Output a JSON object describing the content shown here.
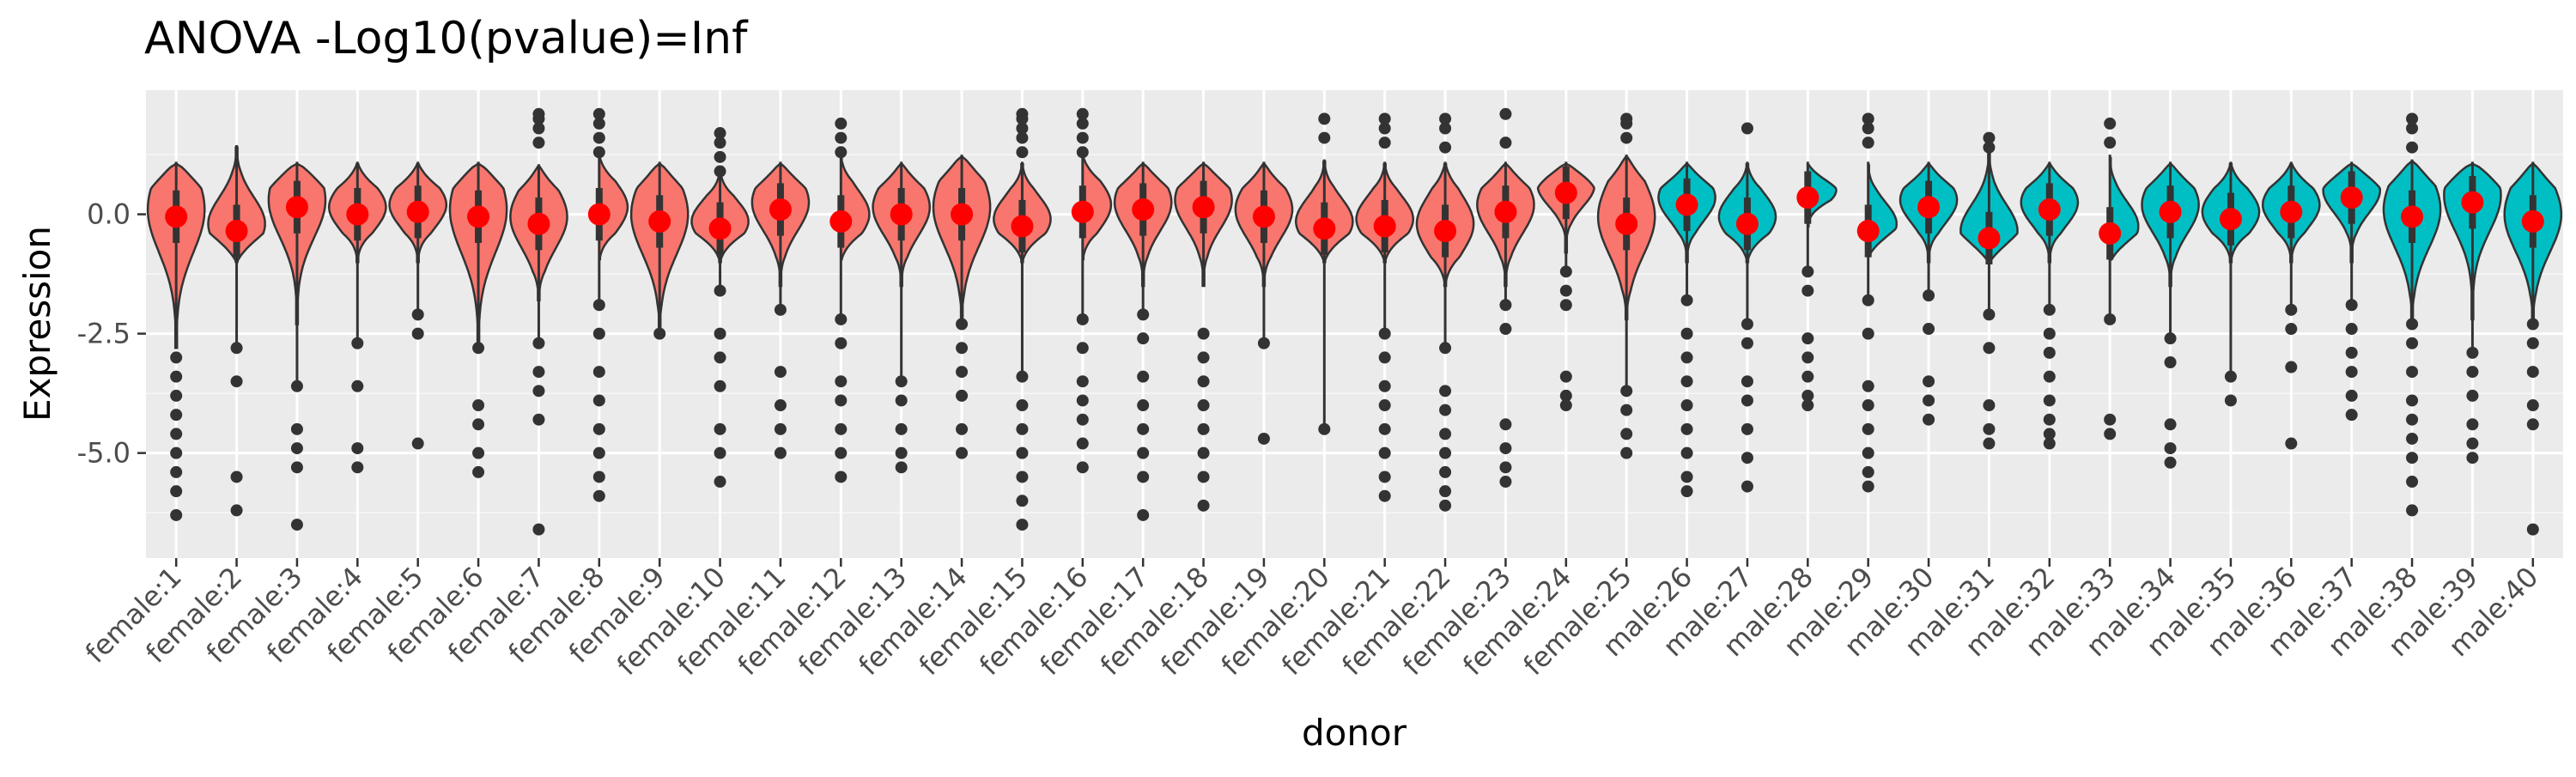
{
  "chart_data": {
    "type": "violin",
    "title": "ANOVA -Log10(pvalue)=Inf",
    "xlabel": "donor",
    "ylabel": "Expression",
    "ylim": [
      -7.2,
      2.6
    ],
    "yticks": [
      0.0,
      -2.5,
      -5.0
    ],
    "ytick_labels": [
      "0.0",
      "-2.5",
      "-5.0"
    ],
    "grid": true,
    "legend": "none",
    "group_colors": {
      "female": "#F8766D",
      "male": "#00BFC4"
    },
    "mean_color": "#FF0000",
    "outline_color": "#333333",
    "categories": [
      "female:1",
      "female:2",
      "female:3",
      "female:4",
      "female:5",
      "female:6",
      "female:7",
      "female:8",
      "female:9",
      "female:10",
      "female:11",
      "female:12",
      "female:13",
      "female:14",
      "female:15",
      "female:16",
      "female:17",
      "female:18",
      "female:19",
      "female:20",
      "female:21",
      "female:22",
      "female:23",
      "female:24",
      "female:25",
      "male:26",
      "male:27",
      "male:28",
      "male:29",
      "male:30",
      "male:31",
      "male:32",
      "male:33",
      "male:34",
      "male:35",
      "male:36",
      "male:37",
      "male:38",
      "male:39",
      "male:40"
    ],
    "groups": [
      "female",
      "female",
      "female",
      "female",
      "female",
      "female",
      "female",
      "female",
      "female",
      "female",
      "female",
      "female",
      "female",
      "female",
      "female",
      "female",
      "female",
      "female",
      "female",
      "female",
      "female",
      "female",
      "female",
      "female",
      "female",
      "male",
      "male",
      "male",
      "male",
      "male",
      "male",
      "male",
      "male",
      "male",
      "male",
      "male",
      "male",
      "male",
      "male",
      "male"
    ],
    "means": [
      -0.05,
      -0.35,
      0.15,
      0.0,
      0.05,
      -0.05,
      -0.2,
      -0.0,
      -0.15,
      -0.3,
      0.1,
      -0.15,
      0.0,
      0.0,
      -0.25,
      0.05,
      0.1,
      0.15,
      -0.05,
      -0.3,
      -0.25,
      -0.35,
      0.05,
      0.45,
      -0.2,
      0.2,
      -0.2,
      0.35,
      -0.35,
      0.15,
      -0.5,
      0.1,
      -0.4,
      0.05,
      -0.1,
      0.05,
      0.35,
      -0.05,
      0.25,
      -0.15
    ],
    "violin_max": [
      1.05,
      1.4,
      1.05,
      1.05,
      1.05,
      1.05,
      1.0,
      1.2,
      1.05,
      0.9,
      1.05,
      1.2,
      1.05,
      1.2,
      1.05,
      1.2,
      1.05,
      1.05,
      1.05,
      1.1,
      1.05,
      1.05,
      1.05,
      1.05,
      1.2,
      1.05,
      1.05,
      1.05,
      1.05,
      1.05,
      1.4,
      1.05,
      1.2,
      1.05,
      1.05,
      1.05,
      1.05,
      1.1,
      1.05,
      1.05
    ],
    "violin_min": [
      -2.8,
      -1.0,
      -2.3,
      -1.0,
      -1.0,
      -2.8,
      -1.8,
      -1.0,
      -2.5,
      -1.0,
      -1.5,
      -1.0,
      -1.5,
      -2.3,
      -1.0,
      -1.0,
      -1.5,
      -1.5,
      -1.5,
      -1.0,
      -1.0,
      -1.5,
      -1.5,
      -0.8,
      -2.2,
      -1.0,
      -1.0,
      -0.3,
      -0.9,
      -1.0,
      -1.0,
      -1.0,
      -1.0,
      -1.5,
      -1.0,
      -1.0,
      -1.0,
      -2.3,
      -2.2,
      -2.3
    ],
    "whisker_min": [
      -2.8,
      -2.8,
      -3.6,
      -2.7,
      -2.1,
      -2.8,
      -2.7,
      -1.9,
      -2.5,
      -1.6,
      -2.0,
      -2.2,
      -3.5,
      -2.3,
      -3.4,
      -2.2,
      -2.1,
      -1.5,
      -2.7,
      -4.5,
      -2.5,
      -2.8,
      -1.9,
      -1.2,
      -3.7,
      -1.8,
      -2.3,
      -1.2,
      -1.8,
      -1.7,
      -2.1,
      -2.0,
      -2.2,
      -2.6,
      -3.4,
      -2.0,
      -1.9,
      -2.3,
      -2.9,
      -2.3
    ],
    "outliers": [
      [
        -3,
        -3.4,
        -3.8,
        -4.2,
        -4.6,
        -5.0,
        -5.4,
        -5.8,
        -6.3
      ],
      [
        -2.8,
        -3.5,
        -5.5,
        -6.2
      ],
      [
        -3.6,
        -4.5,
        -4.9,
        -5.3,
        -6.5
      ],
      [
        -2.7,
        -3.6,
        -4.9,
        -5.3
      ],
      [
        -2.1,
        -2.5,
        -4.8
      ],
      [
        -2.8,
        -4.0,
        -4.4,
        -5.0,
        -5.4
      ],
      [
        -2.7,
        -3.3,
        -3.7,
        -4.3,
        -6.6
      ],
      [
        -1.9,
        -2.5,
        -3.3,
        -3.9,
        -4.5,
        -5.0,
        -5.5,
        -5.9
      ],
      [
        -2.5
      ],
      [
        -1.6,
        -2.5,
        -3.0,
        -3.6,
        -4.5,
        -5.0,
        -5.6
      ],
      [
        -2.0,
        -3.3,
        -4.0,
        -4.5,
        -5.0
      ],
      [
        -2.2,
        -2.7,
        -3.5,
        -3.9,
        -4.5,
        -5.0,
        -5.5
      ],
      [
        -3.5,
        -3.9,
        -4.5,
        -5.0,
        -5.3
      ],
      [
        -2.3,
        -2.8,
        -3.3,
        -3.8,
        -4.5,
        -5.0
      ],
      [
        -3.4,
        -4.0,
        -4.5,
        -5.0,
        -5.5,
        -6.0,
        -6.5
      ],
      [
        -2.2,
        -2.8,
        -3.5,
        -3.9,
        -4.3,
        -4.8,
        -5.3
      ],
      [
        -2.1,
        -2.6,
        -3.4,
        -4.0,
        -4.5,
        -5.0,
        -5.5,
        -6.3
      ],
      [
        -2.5,
        -3.0,
        -3.5,
        -4.0,
        -4.5,
        -5.0,
        -5.5,
        -6.1
      ],
      [
        -2.7,
        -4.7
      ],
      [
        -4.5
      ],
      [
        -2.5,
        -3.0,
        -3.6,
        -4.0,
        -4.5,
        -5.0,
        -5.5,
        -5.9
      ],
      [
        -2.8,
        -3.7,
        -4.1,
        -4.6,
        -5.0,
        -5.4,
        -5.8,
        -6.1
      ],
      [
        -1.9,
        -2.4,
        -4.4,
        -4.9,
        -5.3,
        -5.6
      ],
      [
        -1.2,
        -1.6,
        -1.9,
        -3.4,
        -3.8,
        -4.0
      ],
      [
        -3.7,
        -4.1,
        -4.6,
        -5.0
      ],
      [
        -1.8,
        -2.5,
        -3.0,
        -3.5,
        -4.0,
        -4.5,
        -5.0,
        -5.5,
        -5.8
      ],
      [
        -2.3,
        -2.7,
        -3.5,
        -3.9,
        -4.5,
        -5.1,
        -5.7
      ],
      [
        -1.2,
        -1.6,
        -2.6,
        -3.0,
        -3.4,
        -3.8,
        -4.0
      ],
      [
        -1.8,
        -2.5,
        -3.6,
        -4.0,
        -4.5,
        -5.0,
        -5.4,
        -5.7
      ],
      [
        -1.7,
        -2.4,
        -3.5,
        -3.9,
        -4.3
      ],
      [
        -2.1,
        -2.8,
        -4.0,
        -4.5,
        -4.8
      ],
      [
        -2.0,
        -2.5,
        -2.9,
        -3.4,
        -3.9,
        -4.3,
        -4.6,
        -4.8
      ],
      [
        -2.2,
        -4.3,
        -4.6
      ],
      [
        -2.6,
        -3.1,
        -4.4,
        -4.9,
        -5.2
      ],
      [
        -3.4,
        -3.9
      ],
      [
        -2.0,
        -2.4,
        -3.2,
        -4.8
      ],
      [
        -1.9,
        -2.4,
        -2.9,
        -3.3,
        -3.8,
        -4.2
      ],
      [
        -2.3,
        -2.7,
        -3.3,
        -3.9,
        -4.3,
        -4.7,
        -5.1,
        -5.6,
        -6.2
      ],
      [
        -2.9,
        -3.3,
        -3.8,
        -4.4,
        -4.8,
        -5.1
      ],
      [
        -2.3,
        -2.7,
        -3.3,
        -4.0,
        -4.4,
        -6.6
      ]
    ],
    "top_outliers": [
      [],
      [],
      [],
      [],
      [],
      [],
      [
        1.5,
        1.8,
        2.0,
        2.1
      ],
      [
        1.3,
        1.6,
        1.9,
        2.1
      ],
      [],
      [
        0.9,
        1.2,
        1.5,
        1.7
      ],
      [],
      [
        1.3,
        1.6,
        1.9
      ],
      [],
      [],
      [
        1.3,
        1.6,
        1.8,
        2.0,
        2.1
      ],
      [
        1.3,
        1.6,
        1.9,
        2.1
      ],
      [],
      [],
      [],
      [
        1.6,
        2.0
      ],
      [
        1.5,
        1.8,
        2.0
      ],
      [
        1.4,
        1.8,
        2.0
      ],
      [
        1.5,
        2.1
      ],
      [],
      [
        1.6,
        1.9,
        2.0
      ],
      [],
      [
        1.8
      ],
      [],
      [
        1.5,
        1.8,
        2.0
      ],
      [],
      [
        1.4,
        1.6
      ],
      [],
      [
        1.5,
        1.9
      ],
      [],
      [],
      [],
      [],
      [
        1.4,
        1.8,
        2.0
      ],
      [],
      []
    ]
  }
}
